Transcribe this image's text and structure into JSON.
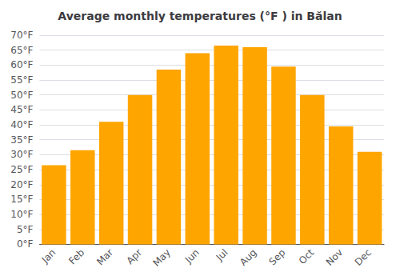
{
  "chart_data": {
    "type": "bar",
    "title": "Average monthly temperatures (°F ) in Bălan",
    "categories": [
      "Jan",
      "Feb",
      "Mar",
      "Apr",
      "May",
      "Jun",
      "Jul",
      "Aug",
      "Sep",
      "Oct",
      "Nov",
      "Dec"
    ],
    "values": [
      26.5,
      31.5,
      41.0,
      50.0,
      58.5,
      64.0,
      66.5,
      66.0,
      59.5,
      50.0,
      39.5,
      31.0
    ],
    "color": "#FFA500",
    "ylim": [
      0,
      70
    ],
    "yticks": [
      {
        "value": 0,
        "label": "0°F"
      },
      {
        "value": 5,
        "label": "5°F"
      },
      {
        "value": 10,
        "label": "10°F"
      },
      {
        "value": 15,
        "label": "15°F"
      },
      {
        "value": 20,
        "label": "20°F"
      },
      {
        "value": 25,
        "label": "25°F"
      },
      {
        "value": 30,
        "label": "30°F"
      },
      {
        "value": 35,
        "label": "35°F"
      },
      {
        "value": 40,
        "label": "40°F"
      },
      {
        "value": 45,
        "label": "45°F"
      },
      {
        "value": 50,
        "label": "50°F"
      },
      {
        "value": 55,
        "label": "55°F"
      },
      {
        "value": 60,
        "label": "60°F"
      },
      {
        "value": 65,
        "label": "65°F"
      },
      {
        "value": 70,
        "label": "70°F"
      }
    ],
    "grid": true
  }
}
